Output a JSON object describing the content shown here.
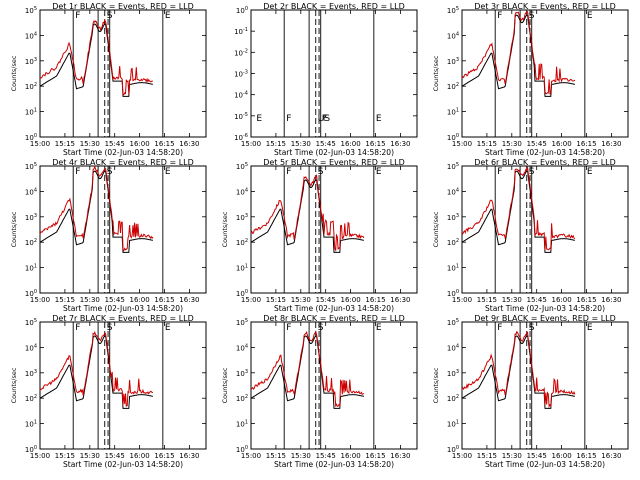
{
  "colors": {
    "events": "#000000",
    "lld": "#cc0000",
    "background": "#ffffff",
    "axes": "#000000"
  },
  "chart_data": [
    {
      "type": "line",
      "title": "Det 1r  BLACK = Events, RED = LLD",
      "xlabel": "Start Time (02-Jun-03 14:58:20)",
      "ylabel": "Counts/sec",
      "x_ticks": [
        "15:00",
        "15:15",
        "15:30",
        "15:45",
        "16:00",
        "16:15",
        "16:30"
      ],
      "y_ticks": [
        "10^0",
        "10^1",
        "10^2",
        "10^3",
        "10^4",
        "10^5"
      ],
      "yscale": "log",
      "ylim": [
        1,
        100000
      ],
      "xlim_minutes": [
        0,
        100
      ],
      "vlines_solid": [
        20,
        35,
        42,
        74
      ],
      "vlines_dashed": [
        39,
        41
      ],
      "markers": [
        "F",
        "S",
        "E"
      ],
      "series_hint": "normal"
    },
    {
      "type": "line",
      "title": "Det 2r  BLACK = Events, RED = LLD",
      "xlabel": "Start Time (02-Jun-03 14:58:20)",
      "ylabel": "",
      "x_ticks": [
        "15:00",
        "15:15",
        "15:30",
        "15:45",
        "16:00",
        "16:15",
        "16:30"
      ],
      "y_ticks": [
        "10^-6",
        "10^-5",
        "10^-4",
        "10^-3",
        "10^-2",
        "10^-1",
        "10^0"
      ],
      "yscale": "log",
      "ylim": [
        1e-06,
        1
      ],
      "xlim_minutes": [
        0,
        100
      ],
      "vlines_solid": [
        20,
        35,
        42,
        74
      ],
      "vlines_dashed": [
        39,
        41
      ],
      "markers": [
        "E",
        "F",
        "US",
        "F",
        "E"
      ],
      "series_hint": "empty"
    },
    {
      "type": "line",
      "title": "Det 3r  BLACK = Events, RED = LLD",
      "xlabel": "Start Time (02-Jun-03 14:58:20)",
      "ylabel": "Counts/sec",
      "x_ticks": [
        "15:00",
        "15:15",
        "15:30",
        "15:45",
        "16:00",
        "16:15",
        "16:30"
      ],
      "y_ticks": [
        "10^0",
        "10^1",
        "10^2",
        "10^3",
        "10^4",
        "10^5"
      ],
      "yscale": "log",
      "ylim": [
        1,
        100000
      ],
      "xlim_minutes": [
        0,
        100
      ],
      "vlines_solid": [
        20,
        35,
        42,
        74
      ],
      "vlines_dashed": [
        39,
        41
      ],
      "markers": [
        "F",
        "S",
        "E"
      ],
      "series_hint": "high"
    },
    {
      "type": "line",
      "title": "Det 4r  BLACK = Events, RED = LLD",
      "xlabel": "Start Time (02-Jun-03 14:58:20)",
      "ylabel": "Counts/sec",
      "x_ticks": [
        "15:00",
        "15:15",
        "15:30",
        "15:45",
        "16:00",
        "16:15",
        "16:30"
      ],
      "y_ticks": [
        "10^0",
        "10^1",
        "10^2",
        "10^3",
        "10^4",
        "10^5"
      ],
      "yscale": "log",
      "ylim": [
        1,
        100000
      ],
      "xlim_minutes": [
        0,
        100
      ],
      "vlines_solid": [
        20,
        35,
        42,
        74
      ],
      "vlines_dashed": [
        39,
        41
      ],
      "markers": [
        "F",
        "S",
        "E"
      ],
      "series_hint": "high"
    },
    {
      "type": "line",
      "title": "Det 5r  BLACK = Events, RED = LLD",
      "xlabel": "Start Time (02-Jun-03 14:58:20)",
      "ylabel": "Counts/sec",
      "x_ticks": [
        "15:00",
        "15:15",
        "15:30",
        "15:45",
        "16:00",
        "16:15",
        "16:30"
      ],
      "y_ticks": [
        "10^0",
        "10^1",
        "10^2",
        "10^3",
        "10^4",
        "10^5"
      ],
      "yscale": "log",
      "ylim": [
        1,
        100000
      ],
      "xlim_minutes": [
        0,
        100
      ],
      "vlines_solid": [
        20,
        35,
        42,
        74
      ],
      "vlines_dashed": [
        39,
        41
      ],
      "markers": [
        "F",
        "S",
        "E"
      ],
      "series_hint": "normal"
    },
    {
      "type": "line",
      "title": "Det 6r  BLACK = Events, RED = LLD",
      "xlabel": "Start Time (02-Jun-03 14:58:20)",
      "ylabel": "Counts/sec",
      "x_ticks": [
        "15:00",
        "15:15",
        "15:30",
        "15:45",
        "16:00",
        "16:15",
        "16:30"
      ],
      "y_ticks": [
        "10^0",
        "10^1",
        "10^2",
        "10^3",
        "10^4",
        "10^5"
      ],
      "yscale": "log",
      "ylim": [
        1,
        100000
      ],
      "xlim_minutes": [
        0,
        100
      ],
      "vlines_solid": [
        20,
        35,
        42,
        74
      ],
      "vlines_dashed": [
        39,
        41
      ],
      "markers": [
        "F",
        "S",
        "E"
      ],
      "series_hint": "high"
    },
    {
      "type": "line",
      "title": "Det 7r  BLACK = Events, RED = LLD",
      "xlabel": "Start Time (02-Jun-03 14:58:20)",
      "ylabel": "Counts/sec",
      "x_ticks": [
        "15:00",
        "15:15",
        "15:30",
        "15:45",
        "16:00",
        "16:15",
        "16:30"
      ],
      "y_ticks": [
        "10^0",
        "10^1",
        "10^2",
        "10^3",
        "10^4",
        "10^5"
      ],
      "yscale": "log",
      "ylim": [
        1,
        100000
      ],
      "xlim_minutes": [
        0,
        100
      ],
      "vlines_solid": [
        20,
        35,
        42,
        74
      ],
      "vlines_dashed": [
        39,
        41
      ],
      "markers": [
        "F",
        "S",
        "E"
      ],
      "series_hint": "normal"
    },
    {
      "type": "line",
      "title": "Det 8r  BLACK = Events, RED = LLD",
      "xlabel": "Start Time (02-Jun-03 14:58:20)",
      "ylabel": "Counts/sec",
      "x_ticks": [
        "15:00",
        "15:15",
        "15:30",
        "15:45",
        "16:00",
        "16:15",
        "16:30"
      ],
      "y_ticks": [
        "10^0",
        "10^1",
        "10^2",
        "10^3",
        "10^4",
        "10^5"
      ],
      "yscale": "log",
      "ylim": [
        1,
        100000
      ],
      "xlim_minutes": [
        0,
        100
      ],
      "vlines_solid": [
        20,
        35,
        42,
        74
      ],
      "vlines_dashed": [
        39,
        41
      ],
      "markers": [
        "F",
        "S",
        "E"
      ],
      "series_hint": "normal"
    },
    {
      "type": "line",
      "title": "Det 9r  BLACK = Events, RED = LLD",
      "xlabel": "Start Time (02-Jun-03 14:58:20)",
      "ylabel": "Counts/sec",
      "x_ticks": [
        "15:00",
        "15:15",
        "15:30",
        "15:45",
        "16:00",
        "16:15",
        "16:30"
      ],
      "y_ticks": [
        "10^0",
        "10^1",
        "10^2",
        "10^3",
        "10^4",
        "10^5"
      ],
      "yscale": "log",
      "ylim": [
        1,
        100000
      ],
      "xlim_minutes": [
        0,
        100
      ],
      "vlines_solid": [
        20,
        35,
        42,
        74
      ],
      "vlines_dashed": [
        39,
        41
      ],
      "markers": [
        "F",
        "S",
        "E"
      ],
      "series_hint": "normal"
    }
  ]
}
